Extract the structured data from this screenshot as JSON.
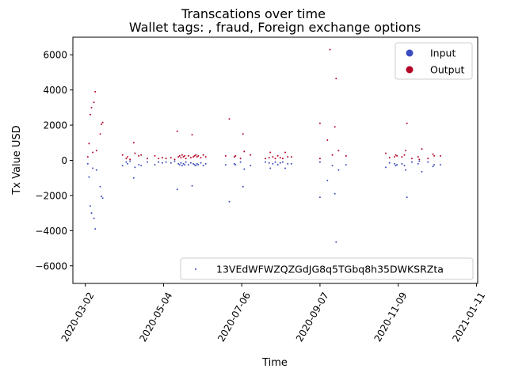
{
  "chart_data": {
    "type": "scatter",
    "title": "Transcations over time",
    "subtitle": "Wallet tags: , fraud, Foreign exchange options",
    "xlabel": "Time",
    "ylabel": "Tx Value USD",
    "xlim": [
      "2020-02-21",
      "2021-01-12"
    ],
    "ylim": [
      -7000,
      7000
    ],
    "xticks": [
      "2020-03-02",
      "2020-05-04",
      "2020-07-06",
      "2020-09-07",
      "2020-11-09",
      "2021-01-11"
    ],
    "yticks": [
      -6000,
      -4000,
      -2000,
      0,
      2000,
      4000,
      6000
    ],
    "grid": false,
    "legend_top": {
      "placement": "top-right",
      "entries": [
        {
          "label": "Input",
          "color": "#3b4cc0"
        },
        {
          "label": "Output",
          "color": "#b40426"
        }
      ]
    },
    "legend_bottom": {
      "placement": "bottom-right",
      "entries": [
        {
          "label": "13VEdWFWZQZGdJG8q5TGbq8h35DWKSRZta",
          "color": "#3b4cc0"
        }
      ]
    },
    "series": [
      {
        "role": "Output",
        "color": "#b40426",
        "points": [
          [
            "2020-03-04",
            200
          ],
          [
            "2020-03-05",
            950
          ],
          [
            "2020-03-06",
            2600
          ],
          [
            "2020-03-07",
            3000
          ],
          [
            "2020-03-08",
            450
          ],
          [
            "2020-03-09",
            3300
          ],
          [
            "2020-03-10",
            3900
          ],
          [
            "2020-03-11",
            550
          ],
          [
            "2020-03-14",
            1500
          ],
          [
            "2020-03-15",
            2050
          ],
          [
            "2020-03-16",
            2150
          ],
          [
            "2020-04-01",
            300
          ],
          [
            "2020-04-04",
            100
          ],
          [
            "2020-04-05",
            200
          ],
          [
            "2020-04-07",
            50
          ],
          [
            "2020-04-10",
            1000
          ],
          [
            "2020-04-11",
            400
          ],
          [
            "2020-04-14",
            250
          ],
          [
            "2020-04-16",
            300
          ],
          [
            "2020-04-21",
            100
          ],
          [
            "2020-04-27",
            250
          ],
          [
            "2020-04-30",
            100
          ],
          [
            "2020-05-03",
            150
          ],
          [
            "2020-05-06",
            100
          ],
          [
            "2020-05-10",
            150
          ],
          [
            "2020-05-13",
            50
          ],
          [
            "2020-05-15",
            1650
          ],
          [
            "2020-05-16",
            200
          ],
          [
            "2020-05-17",
            250
          ],
          [
            "2020-05-18",
            150
          ],
          [
            "2020-05-19",
            300
          ],
          [
            "2020-05-20",
            200
          ],
          [
            "2020-05-21",
            250
          ],
          [
            "2020-05-22",
            100
          ],
          [
            "2020-05-24",
            250
          ],
          [
            "2020-05-26",
            150
          ],
          [
            "2020-05-27",
            1450
          ],
          [
            "2020-05-28",
            200
          ],
          [
            "2020-05-29",
            250
          ],
          [
            "2020-05-30",
            300
          ],
          [
            "2020-05-31",
            200
          ],
          [
            "2020-06-01",
            250
          ],
          [
            "2020-06-03",
            150
          ],
          [
            "2020-06-05",
            300
          ],
          [
            "2020-06-07",
            200
          ],
          [
            "2020-06-23",
            250
          ],
          [
            "2020-06-26",
            2350
          ],
          [
            "2020-06-30",
            200
          ],
          [
            "2020-07-01",
            250
          ],
          [
            "2020-07-05",
            100
          ],
          [
            "2020-07-07",
            1500
          ],
          [
            "2020-07-08",
            500
          ],
          [
            "2020-07-13",
            300
          ],
          [
            "2020-07-25",
            100
          ],
          [
            "2020-07-28",
            150
          ],
          [
            "2020-07-29",
            450
          ],
          [
            "2020-07-31",
            200
          ],
          [
            "2020-08-02",
            100
          ],
          [
            "2020-08-04",
            250
          ],
          [
            "2020-08-06",
            150
          ],
          [
            "2020-08-08",
            100
          ],
          [
            "2020-08-10",
            450
          ],
          [
            "2020-08-12",
            200
          ],
          [
            "2020-08-15",
            200
          ],
          [
            "2020-09-07",
            2100
          ],
          [
            "2020-09-07",
            100
          ],
          [
            "2020-09-13",
            1150
          ],
          [
            "2020-09-15",
            6300
          ],
          [
            "2020-09-17",
            300
          ],
          [
            "2020-09-19",
            1900
          ],
          [
            "2020-09-20",
            4650
          ],
          [
            "2020-09-22",
            550
          ],
          [
            "2020-09-28",
            250
          ],
          [
            "2020-10-30",
            400
          ],
          [
            "2020-11-02",
            150
          ],
          [
            "2020-11-06",
            200
          ],
          [
            "2020-11-07",
            300
          ],
          [
            "2020-11-08",
            250
          ],
          [
            "2020-11-12",
            200
          ],
          [
            "2020-11-14",
            300
          ],
          [
            "2020-11-15",
            550
          ],
          [
            "2020-11-16",
            2100
          ],
          [
            "2020-11-20",
            100
          ],
          [
            "2020-11-25",
            200
          ],
          [
            "2020-11-26",
            50
          ],
          [
            "2020-11-28",
            650
          ],
          [
            "2020-12-03",
            100
          ],
          [
            "2020-12-07",
            350
          ],
          [
            "2020-12-08",
            250
          ],
          [
            "2020-12-13",
            250
          ]
        ]
      },
      {
        "role": "Input",
        "color": "#3b4cc0",
        "points": [
          [
            "2020-03-04",
            -200
          ],
          [
            "2020-03-05",
            -950
          ],
          [
            "2020-03-06",
            -2600
          ],
          [
            "2020-03-07",
            -3000
          ],
          [
            "2020-03-08",
            -450
          ],
          [
            "2020-03-09",
            -3300
          ],
          [
            "2020-03-10",
            -3900
          ],
          [
            "2020-03-11",
            -550
          ],
          [
            "2020-03-14",
            -1500
          ],
          [
            "2020-03-15",
            -2050
          ],
          [
            "2020-03-16",
            -2150
          ],
          [
            "2020-04-01",
            -300
          ],
          [
            "2020-04-04",
            -100
          ],
          [
            "2020-04-05",
            -200
          ],
          [
            "2020-04-07",
            -50
          ],
          [
            "2020-04-10",
            -1000
          ],
          [
            "2020-04-11",
            -400
          ],
          [
            "2020-04-14",
            -250
          ],
          [
            "2020-04-16",
            -300
          ],
          [
            "2020-04-21",
            -100
          ],
          [
            "2020-04-27",
            -250
          ],
          [
            "2020-04-30",
            -100
          ],
          [
            "2020-05-03",
            -150
          ],
          [
            "2020-05-06",
            -100
          ],
          [
            "2020-05-10",
            -150
          ],
          [
            "2020-05-13",
            -50
          ],
          [
            "2020-05-15",
            -1650
          ],
          [
            "2020-05-16",
            -200
          ],
          [
            "2020-05-17",
            -250
          ],
          [
            "2020-05-18",
            -150
          ],
          [
            "2020-05-19",
            -300
          ],
          [
            "2020-05-20",
            -200
          ],
          [
            "2020-05-21",
            -250
          ],
          [
            "2020-05-22",
            -100
          ],
          [
            "2020-05-24",
            -250
          ],
          [
            "2020-05-26",
            -150
          ],
          [
            "2020-05-27",
            -1450
          ],
          [
            "2020-05-28",
            -200
          ],
          [
            "2020-05-29",
            -250
          ],
          [
            "2020-05-30",
            -300
          ],
          [
            "2020-05-31",
            -200
          ],
          [
            "2020-06-01",
            -250
          ],
          [
            "2020-06-03",
            -150
          ],
          [
            "2020-06-05",
            -300
          ],
          [
            "2020-06-07",
            -200
          ],
          [
            "2020-06-23",
            -250
          ],
          [
            "2020-06-26",
            -2350
          ],
          [
            "2020-06-30",
            -200
          ],
          [
            "2020-07-01",
            -250
          ],
          [
            "2020-07-05",
            -100
          ],
          [
            "2020-07-07",
            -1500
          ],
          [
            "2020-07-08",
            -500
          ],
          [
            "2020-07-13",
            -300
          ],
          [
            "2020-07-25",
            -100
          ],
          [
            "2020-07-28",
            -150
          ],
          [
            "2020-07-29",
            -450
          ],
          [
            "2020-07-31",
            -200
          ],
          [
            "2020-08-02",
            -100
          ],
          [
            "2020-08-04",
            -250
          ],
          [
            "2020-08-06",
            -150
          ],
          [
            "2020-08-08",
            -100
          ],
          [
            "2020-08-10",
            -450
          ],
          [
            "2020-08-12",
            -200
          ],
          [
            "2020-08-15",
            -200
          ],
          [
            "2020-09-07",
            -2100
          ],
          [
            "2020-09-07",
            -100
          ],
          [
            "2020-09-13",
            -1150
          ],
          [
            "2020-09-17",
            -300
          ],
          [
            "2020-09-19",
            -1900
          ],
          [
            "2020-09-20",
            -4650
          ],
          [
            "2020-09-22",
            -550
          ],
          [
            "2020-09-28",
            -250
          ],
          [
            "2020-10-30",
            -400
          ],
          [
            "2020-11-02",
            -150
          ],
          [
            "2020-11-06",
            -200
          ],
          [
            "2020-11-07",
            -300
          ],
          [
            "2020-11-08",
            -250
          ],
          [
            "2020-11-12",
            -200
          ],
          [
            "2020-11-14",
            -300
          ],
          [
            "2020-11-15",
            -550
          ],
          [
            "2020-11-16",
            -2100
          ],
          [
            "2020-11-20",
            -100
          ],
          [
            "2020-11-25",
            -200
          ],
          [
            "2020-11-26",
            -50
          ],
          [
            "2020-11-28",
            -650
          ],
          [
            "2020-12-03",
            -100
          ],
          [
            "2020-12-07",
            -350
          ],
          [
            "2020-12-08",
            -250
          ],
          [
            "2020-12-13",
            -250
          ]
        ]
      }
    ]
  }
}
